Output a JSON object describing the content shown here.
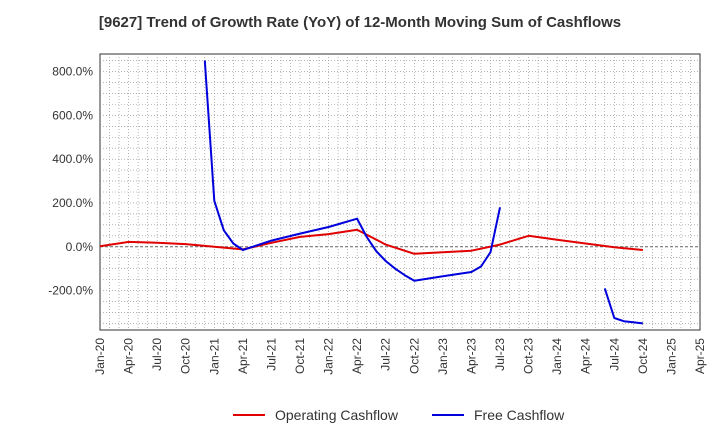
{
  "chart_data": {
    "type": "line",
    "title": "[9627]  Trend of Growth Rate (YoY) of 12-Month Moving Sum of Cashflows",
    "xlabel": "",
    "ylabel": "",
    "x_tick_labels": [
      "Jan-20",
      "Apr-20",
      "Jul-20",
      "Oct-20",
      "Jan-21",
      "Apr-21",
      "Jul-21",
      "Oct-21",
      "Jan-22",
      "Apr-22",
      "Jul-22",
      "Oct-22",
      "Jan-23",
      "Apr-23",
      "Jul-23",
      "Oct-23",
      "Jan-24",
      "Apr-24",
      "Jul-24",
      "Oct-24",
      "Jan-25",
      "Apr-25"
    ],
    "y_ticks": [
      -200,
      0,
      200,
      400,
      600,
      800
    ],
    "y_tick_labels": [
      "-200.0%",
      "0.0%",
      "200.0%",
      "400.0%",
      "600.0%",
      "800.0%"
    ],
    "ylim": [
      -380,
      880
    ],
    "grid": true,
    "legend_position": "bottom",
    "series": [
      {
        "name": "Operating Cashflow",
        "color": "#e00000",
        "points": [
          [
            "Jan-20",
            2
          ],
          [
            "Apr-20",
            22
          ],
          [
            "Jul-20",
            18
          ],
          [
            "Oct-20",
            12
          ],
          [
            "Jan-21",
            0
          ],
          [
            "Apr-21",
            -12
          ],
          [
            "Jul-21",
            18
          ],
          [
            "Oct-21",
            45
          ],
          [
            "Jan-22",
            58
          ],
          [
            "Apr-22",
            78
          ],
          [
            "Jul-22",
            10
          ],
          [
            "Oct-22",
            -32
          ],
          [
            "Jan-23",
            -25
          ],
          [
            "Apr-23",
            -18
          ],
          [
            "Jul-23",
            10
          ],
          [
            "Oct-23",
            50
          ],
          [
            "Jan-24",
            32
          ],
          [
            "Apr-24",
            15
          ],
          [
            "Jul-24",
            -2
          ],
          [
            "Oct-24",
            -15
          ]
        ]
      },
      {
        "name": "Free Cashflow",
        "color": "#0000dd",
        "segments": [
          [
            [
              "Dec-20",
              850
            ],
            [
              "Jan-21",
              210
            ],
            [
              "Feb-21",
              75
            ],
            [
              "Mar-21",
              15
            ],
            [
              "Apr-21",
              -15
            ],
            [
              "Jul-21",
              28
            ],
            [
              "Oct-21",
              60
            ],
            [
              "Jan-22",
              90
            ],
            [
              "Apr-22",
              128
            ],
            [
              "May-22",
              45
            ],
            [
              "Jun-22",
              -20
            ],
            [
              "Jul-22",
              -65
            ],
            [
              "Aug-22",
              -100
            ],
            [
              "Sep-22",
              -130
            ],
            [
              "Oct-22",
              -155
            ],
            [
              "Jan-23",
              -135
            ],
            [
              "Apr-23",
              -115
            ],
            [
              "May-23",
              -90
            ],
            [
              "Jun-23",
              -25
            ],
            [
              "Jul-23",
              180
            ]
          ],
          [
            [
              "Jun-24",
              -190
            ],
            [
              "Jul-24",
              -325
            ],
            [
              "Aug-24",
              -340
            ],
            [
              "Sep-24",
              -345
            ],
            [
              "Oct-24",
              -350
            ]
          ]
        ]
      }
    ]
  }
}
